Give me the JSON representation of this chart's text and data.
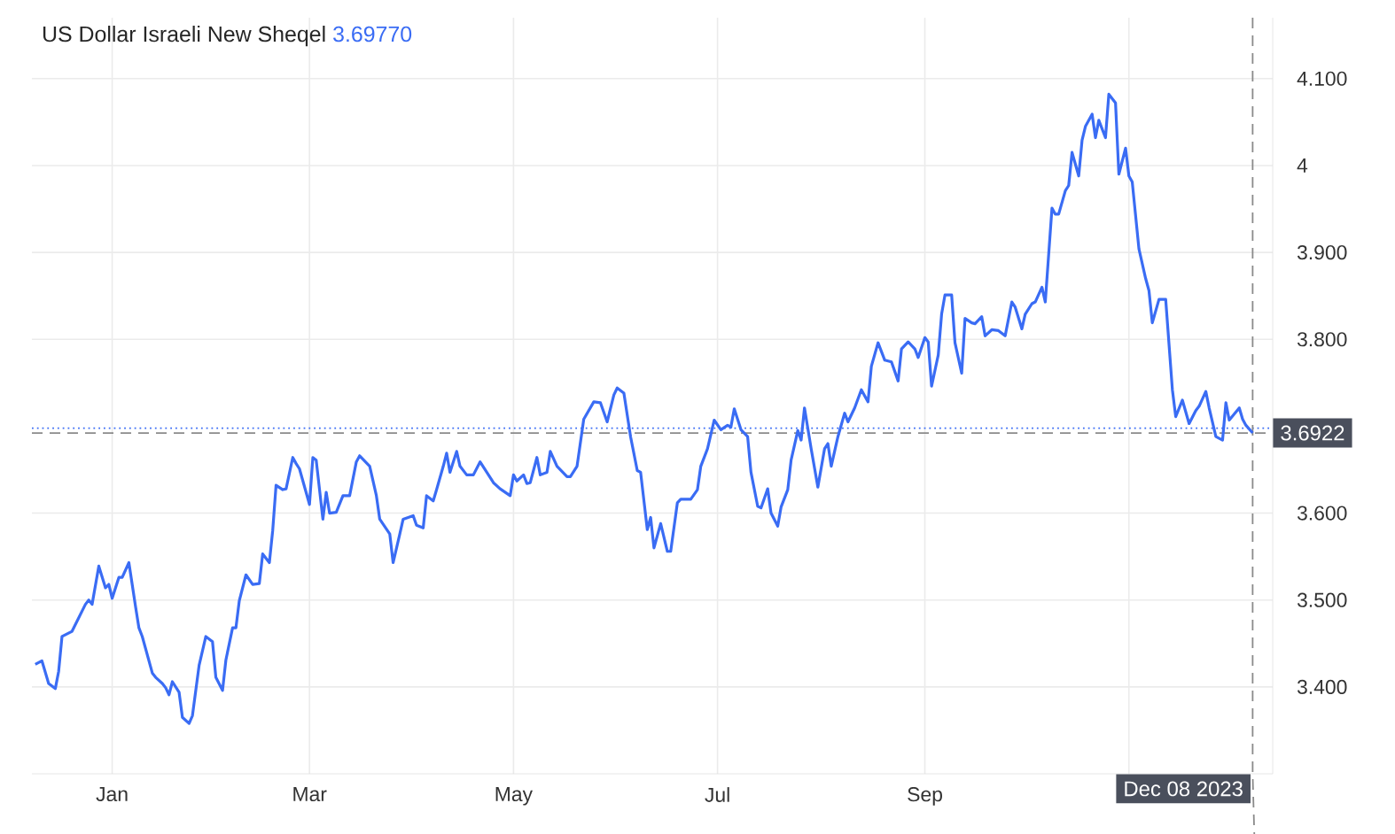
{
  "chart_data": {
    "type": "line",
    "title": "US Dollar Israeli New Sheqel",
    "subtitle": "3.69770",
    "x": [
      "2022-12-09",
      "2022-12-11",
      "2022-12-13",
      "2022-12-15",
      "2022-12-16",
      "2022-12-17",
      "2022-12-20",
      "2022-12-24",
      "2022-12-25",
      "2022-12-26",
      "2022-12-28",
      "2022-12-30",
      "2022-12-31",
      "2023-01-01",
      "2023-01-03",
      "2023-01-04",
      "2023-01-06",
      "2023-01-08",
      "2023-01-09",
      "2023-01-10",
      "2023-01-13",
      "2023-01-14",
      "2023-01-16",
      "2023-01-17",
      "2023-01-18",
      "2023-01-19",
      "2023-01-21",
      "2023-01-22",
      "2023-01-24",
      "2023-01-25",
      "2023-01-27",
      "2023-01-29",
      "2023-01-31",
      "2023-02-01",
      "2023-02-03",
      "2023-02-04",
      "2023-02-06",
      "2023-02-07",
      "2023-02-08",
      "2023-02-10",
      "2023-02-12",
      "2023-02-14",
      "2023-02-15",
      "2023-02-17",
      "2023-02-18",
      "2023-02-19",
      "2023-02-21",
      "2023-02-22",
      "2023-02-24",
      "2023-02-25",
      "2023-02-26",
      "2023-03-01",
      "2023-03-02",
      "2023-03-03",
      "2023-03-05",
      "2023-03-06",
      "2023-03-07",
      "2023-03-09",
      "2023-03-11",
      "2023-03-13",
      "2023-03-15",
      "2023-03-16",
      "2023-03-19",
      "2023-03-21",
      "2023-03-22",
      "2023-03-25",
      "2023-03-26",
      "2023-03-28",
      "2023-03-29",
      "2023-04-01",
      "2023-04-02",
      "2023-04-04",
      "2023-04-05",
      "2023-04-07",
      "2023-04-08",
      "2023-04-10",
      "2023-04-11",
      "2023-04-12",
      "2023-04-14",
      "2023-04-15",
      "2023-04-17",
      "2023-04-19",
      "2023-04-21",
      "2023-04-23",
      "2023-04-25",
      "2023-04-27",
      "2023-04-30",
      "2023-05-01",
      "2023-05-02",
      "2023-05-04",
      "2023-05-05",
      "2023-05-06",
      "2023-05-08",
      "2023-05-09",
      "2023-05-11",
      "2023-05-12",
      "2023-05-14",
      "2023-05-17",
      "2023-05-18",
      "2023-05-20",
      "2023-05-22",
      "2023-05-25",
      "2023-05-27",
      "2023-05-29",
      "2023-05-31",
      "2023-06-01",
      "2023-06-03",
      "2023-06-05",
      "2023-06-07",
      "2023-06-08",
      "2023-06-10",
      "2023-06-11",
      "2023-06-12",
      "2023-06-14",
      "2023-06-16",
      "2023-06-17",
      "2023-06-19",
      "2023-06-20",
      "2023-06-23",
      "2023-06-25",
      "2023-06-26",
      "2023-06-28",
      "2023-06-30",
      "2023-07-02",
      "2023-07-04",
      "2023-07-05",
      "2023-07-06",
      "2023-07-08",
      "2023-07-10",
      "2023-07-11",
      "2023-07-13",
      "2023-07-14",
      "2023-07-16",
      "2023-07-17",
      "2023-07-19",
      "2023-07-20",
      "2023-07-22",
      "2023-07-23",
      "2023-07-25",
      "2023-07-26",
      "2023-07-27",
      "2023-07-29",
      "2023-07-31",
      "2023-08-02",
      "2023-08-03",
      "2023-08-04",
      "2023-08-06",
      "2023-08-08",
      "2023-08-09",
      "2023-08-11",
      "2023-08-13",
      "2023-08-15",
      "2023-08-16",
      "2023-08-18",
      "2023-08-20",
      "2023-08-22",
      "2023-08-24",
      "2023-08-25",
      "2023-08-27",
      "2023-08-29",
      "2023-08-30",
      "2023-09-01",
      "2023-09-02",
      "2023-09-03",
      "2023-09-05",
      "2023-09-06",
      "2023-09-07",
      "2023-09-09",
      "2023-09-10",
      "2023-09-12",
      "2023-09-13",
      "2023-09-15",
      "2023-09-16",
      "2023-09-18",
      "2023-09-19",
      "2023-09-21",
      "2023-09-23",
      "2023-09-25",
      "2023-09-27",
      "2023-09-28",
      "2023-09-30",
      "2023-10-01",
      "2023-10-03",
      "2023-10-04",
      "2023-10-06",
      "2023-10-07",
      "2023-10-09",
      "2023-10-10",
      "2023-10-11",
      "2023-10-13",
      "2023-10-14",
      "2023-10-15",
      "2023-10-17",
      "2023-10-18",
      "2023-10-19",
      "2023-10-21",
      "2023-10-22",
      "2023-10-23",
      "2023-10-25",
      "2023-10-26",
      "2023-10-28",
      "2023-10-29",
      "2023-10-31",
      "2023-11-01",
      "2023-11-02",
      "2023-11-04",
      "2023-11-06",
      "2023-11-07",
      "2023-11-08",
      "2023-11-10",
      "2023-11-12",
      "2023-11-14",
      "2023-11-15",
      "2023-11-17",
      "2023-11-19",
      "2023-11-21",
      "2023-11-22",
      "2023-11-24",
      "2023-11-25",
      "2023-11-27",
      "2023-11-29",
      "2023-11-30",
      "2023-12-01",
      "2023-12-04",
      "2023-12-05",
      "2023-12-06",
      "2023-12-08"
    ],
    "series": [
      {
        "color": "#3a6cf4",
        "values": [
          3.426,
          3.43,
          3.404,
          3.398,
          3.418,
          3.458,
          3.464,
          3.495,
          3.5,
          3.495,
          3.539,
          3.514,
          3.518,
          3.502,
          3.526,
          3.526,
          3.543,
          3.492,
          3.468,
          3.458,
          3.416,
          3.411,
          3.404,
          3.399,
          3.391,
          3.406,
          3.394,
          3.365,
          3.358,
          3.367,
          3.425,
          3.458,
          3.452,
          3.411,
          3.396,
          3.431,
          3.468,
          3.468,
          3.499,
          3.529,
          3.518,
          3.519,
          3.553,
          3.543,
          3.58,
          3.632,
          3.627,
          3.628,
          3.664,
          3.657,
          3.651,
          3.61,
          3.664,
          3.661,
          3.593,
          3.624,
          3.6,
          3.601,
          3.62,
          3.62,
          3.659,
          3.666,
          3.654,
          3.62,
          3.593,
          3.576,
          3.543,
          3.576,
          3.593,
          3.597,
          3.586,
          3.583,
          3.62,
          3.614,
          3.627,
          3.654,
          3.669,
          3.647,
          3.671,
          3.654,
          3.644,
          3.644,
          3.659,
          3.647,
          3.635,
          3.628,
          3.62,
          3.644,
          3.637,
          3.644,
          3.634,
          3.635,
          3.664,
          3.644,
          3.647,
          3.671,
          3.654,
          3.642,
          3.642,
          3.654,
          3.708,
          3.728,
          3.727,
          3.705,
          3.736,
          3.744,
          3.738,
          3.688,
          3.649,
          3.647,
          3.581,
          3.595,
          3.56,
          3.588,
          3.556,
          3.556,
          3.612,
          3.616,
          3.616,
          3.627,
          3.654,
          3.674,
          3.707,
          3.696,
          3.701,
          3.699,
          3.72,
          3.696,
          3.688,
          3.647,
          3.608,
          3.606,
          3.628,
          3.6,
          3.585,
          3.607,
          3.627,
          3.661,
          3.695,
          3.684,
          3.721,
          3.674,
          3.63,
          3.674,
          3.68,
          3.654,
          3.688,
          3.715,
          3.705,
          3.721,
          3.742,
          3.728,
          3.769,
          3.796,
          3.776,
          3.774,
          3.752,
          3.789,
          3.797,
          3.789,
          3.779,
          3.802,
          3.797,
          3.746,
          3.782,
          3.829,
          3.851,
          3.851,
          3.796,
          3.761,
          3.824,
          3.819,
          3.818,
          3.826,
          3.804,
          3.811,
          3.81,
          3.804,
          3.843,
          3.837,
          3.812,
          3.829,
          3.841,
          3.843,
          3.86,
          3.843,
          3.951,
          3.944,
          3.944,
          3.971,
          3.977,
          4.015,
          3.988,
          4.029,
          4.045,
          4.059,
          4.032,
          4.052,
          4.032,
          4.082,
          4.072,
          3.99,
          4.02,
          3.988,
          3.981,
          3.904,
          3.87,
          3.856,
          3.819,
          3.846,
          3.846,
          3.742,
          3.711,
          3.73,
          3.703,
          3.718,
          3.723,
          3.74,
          3.721,
          3.688,
          3.684,
          3.727,
          3.707,
          3.721,
          3.708,
          3.701,
          3.6922
        ]
      }
    ],
    "xlim": [
      "2022-12-08",
      "2023-12-14"
    ],
    "xticks": [
      {
        "value": "2023-01-01",
        "label": "Jan"
      },
      {
        "value": "2023-03-01",
        "label": "Mar"
      },
      {
        "value": "2023-05-01",
        "label": "May"
      },
      {
        "value": "2023-07-01",
        "label": "Jul"
      },
      {
        "value": "2023-09-01",
        "label": "Sep"
      },
      {
        "value": "2023-11-01",
        "label": null
      }
    ],
    "ylim": [
      3.3,
      4.17
    ],
    "yticks": [
      {
        "value": 3.4,
        "label": "3.400"
      },
      {
        "value": 3.5,
        "label": "3.500"
      },
      {
        "value": 3.6,
        "label": "3.600"
      },
      {
        "value": 3.8,
        "label": "3.800"
      },
      {
        "value": 3.9,
        "label": "3.900"
      },
      4,
      {
        "value": 4.1,
        "label": "4.100"
      }
    ],
    "ref_lines": [
      {
        "axis": "y",
        "value": 3.6977,
        "color": "#3a6cf4",
        "line_style": "dotted"
      },
      {
        "axis": "y",
        "value": 3.6922,
        "label": "3.6922",
        "color": "#8a8a8a",
        "line_style": "dashed"
      },
      {
        "axis": "x",
        "value": "2023-12-08",
        "label": "Dec 08 2023",
        "color": "#8a8a8a",
        "line_style": "dashed"
      }
    ],
    "grid": true,
    "marker": "none",
    "line_style": "solid"
  }
}
